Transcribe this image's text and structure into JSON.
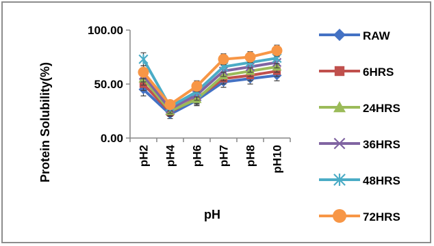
{
  "chart_data": {
    "type": "line",
    "xlabel": "pH",
    "ylabel": "Protein Solubility(%)",
    "categories": [
      "pH2",
      "pH4",
      "pH6",
      "pH7",
      "pH8",
      "pH10"
    ],
    "ylim": [
      0,
      100
    ],
    "yticks": [
      "0.00",
      "50.00",
      "100.00"
    ],
    "legend_position": "right",
    "error_bars": true,
    "series": [
      {
        "name": "RAW",
        "marker": "diamond",
        "color": "#4472c4",
        "values": [
          45,
          22,
          35,
          52,
          55,
          58
        ],
        "error": [
          6,
          4,
          5,
          5,
          5,
          5
        ]
      },
      {
        "name": "6HRS",
        "marker": "square",
        "color": "#c0504d",
        "values": [
          50,
          24,
          37,
          55,
          58,
          62
        ],
        "error": [
          6,
          4,
          5,
          5,
          5,
          5
        ]
      },
      {
        "name": "24HRS",
        "marker": "triangle",
        "color": "#9bbb59",
        "values": [
          55,
          25,
          36,
          58,
          62,
          66
        ],
        "error": [
          6,
          4,
          5,
          5,
          5,
          5
        ]
      },
      {
        "name": "36HRS",
        "marker": "x",
        "color": "#8064a2",
        "values": [
          58,
          27,
          40,
          62,
          66,
          70
        ],
        "error": [
          6,
          4,
          5,
          5,
          5,
          5
        ]
      },
      {
        "name": "48HRS",
        "marker": "star",
        "color": "#4bacc6",
        "values": [
          73,
          29,
          43,
          66,
          70,
          74
        ],
        "error": [
          6,
          4,
          5,
          5,
          5,
          5
        ]
      },
      {
        "name": "72HRS",
        "marker": "circle",
        "color": "#f79646",
        "values": [
          61,
          31,
          48,
          73,
          75,
          81
        ],
        "error": [
          6,
          4,
          5,
          5,
          5,
          5
        ]
      }
    ]
  }
}
